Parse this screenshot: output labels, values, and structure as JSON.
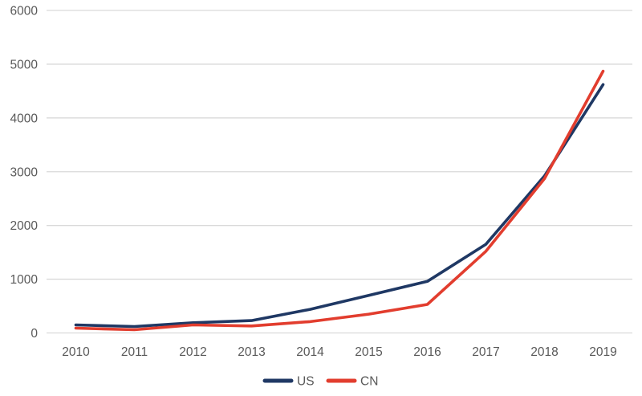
{
  "chart_data": {
    "type": "line",
    "title": "",
    "xlabel": "",
    "ylabel": "",
    "categories": [
      "2010",
      "2011",
      "2012",
      "2013",
      "2014",
      "2015",
      "2016",
      "2017",
      "2018",
      "2019"
    ],
    "series": [
      {
        "name": "US",
        "color": "#1F3864",
        "values": [
          150,
          120,
          190,
          230,
          440,
          700,
          960,
          1650,
          2920,
          4620
        ]
      },
      {
        "name": "CN",
        "color": "#E23D2E",
        "values": [
          90,
          60,
          150,
          130,
          210,
          350,
          530,
          1520,
          2870,
          4870
        ]
      }
    ],
    "ylim": [
      0,
      6000
    ],
    "yticks": [
      0,
      1000,
      2000,
      3000,
      4000,
      5000,
      6000
    ],
    "grid": true,
    "legend_position": "bottom-center",
    "colors": {
      "gridline": "#D9D9D9",
      "axis_label": "#595959",
      "legend_label": "#595959",
      "background": "#FFFFFF"
    }
  }
}
